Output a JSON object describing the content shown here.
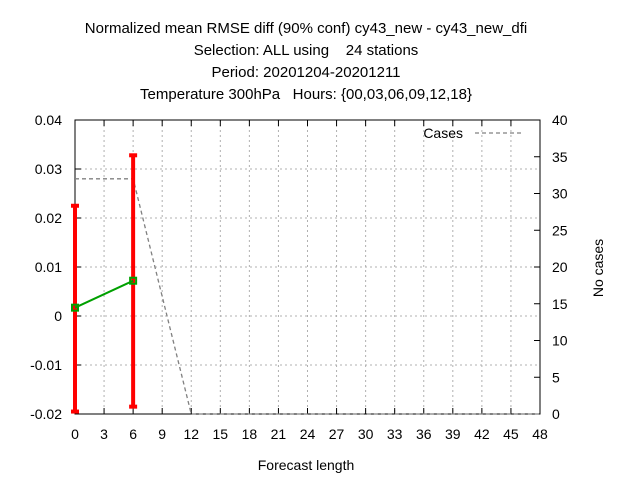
{
  "chart_data": {
    "type": "line",
    "title_lines": [
      "Normalized mean RMSE diff (90% conf) cy43_new - cy43_new_dfi",
      "Selection: ALL using    24 stations",
      "Period: 20201204-20201211",
      "Temperature 300hPa   Hours: {00,03,06,09,12,18}"
    ],
    "xlabel": "Forecast length",
    "ylabel": "",
    "y2label": "No cases",
    "xlim": [
      0,
      48
    ],
    "ylim": [
      -0.02,
      0.04
    ],
    "y2lim": [
      0,
      40
    ],
    "xticks": [
      0,
      3,
      6,
      9,
      12,
      15,
      18,
      21,
      24,
      27,
      30,
      33,
      36,
      39,
      42,
      45,
      48
    ],
    "yticks": [
      -0.02,
      -0.01,
      0,
      0.01,
      0.02,
      0.03,
      0.04
    ],
    "ytick_labels": [
      "-0.02",
      "-0.01",
      "0",
      "0.01",
      "0.02",
      "0.03",
      "0.04"
    ],
    "y2ticks": [
      0,
      5,
      10,
      15,
      20,
      25,
      30,
      35,
      40
    ],
    "grid": true,
    "legend_position": "top-right",
    "series": [
      {
        "kind": "mean",
        "axis": "left",
        "color": "#00a000",
        "x": [
          0,
          6
        ],
        "y": [
          0.0017,
          0.0072
        ]
      },
      {
        "kind": "errorbar",
        "axis": "left",
        "color": "#ff0000",
        "x": [
          0,
          6
        ],
        "low": [
          -0.0195,
          -0.0185
        ],
        "high": [
          0.0225,
          0.0328
        ]
      },
      {
        "name": "Cases",
        "kind": "cases",
        "axis": "right",
        "color": "#808080",
        "dash": true,
        "x": [
          0,
          6,
          12,
          48
        ],
        "y": [
          32,
          32,
          0,
          0
        ]
      }
    ]
  }
}
